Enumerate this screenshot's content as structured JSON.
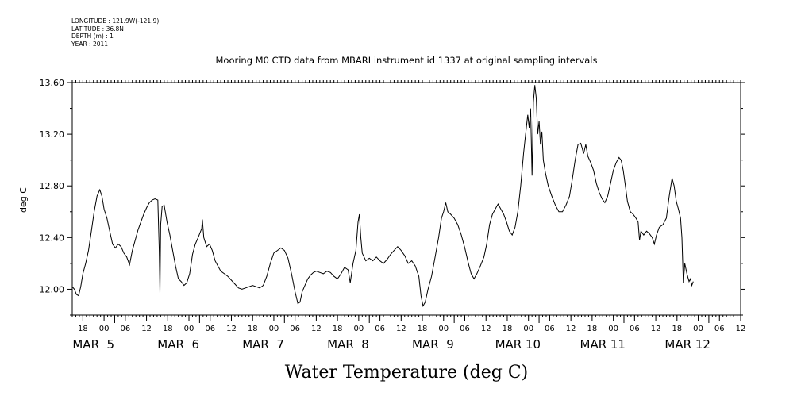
{
  "metadata": [
    "LONGITUDE : 121.9W(-121.9)",
    "LATITUDE : 36.8N",
    "DEPTH (m) : 1",
    "YEAR : 2011"
  ],
  "chart_data": {
    "type": "line",
    "title": "Mooring M0 CTD data from MBARI instrument id 1337 at original sampling intervals",
    "xlabel": "Water Temperature (deg C)",
    "ylabel": "deg C",
    "x_unit": "hours since Mar 4 2011 12:00",
    "xlim": [
      0,
      189
    ],
    "ylim": [
      11.8,
      13.6
    ],
    "yticks": [
      12.0,
      12.4,
      12.8,
      13.2,
      13.6
    ],
    "ytick_labels": [
      "12.00",
      "12.40",
      "12.80",
      "13.20",
      "13.60"
    ],
    "hour_ticks": [
      {
        "x": 3,
        "label": "18"
      },
      {
        "x": 9,
        "label": "00"
      },
      {
        "x": 15,
        "label": "06"
      },
      {
        "x": 21,
        "label": "12"
      },
      {
        "x": 27,
        "label": "18"
      },
      {
        "x": 33,
        "label": "00"
      },
      {
        "x": 39,
        "label": "06"
      },
      {
        "x": 45,
        "label": "12"
      },
      {
        "x": 51,
        "label": "18"
      },
      {
        "x": 57,
        "label": "00"
      },
      {
        "x": 63,
        "label": "06"
      },
      {
        "x": 69,
        "label": "12"
      },
      {
        "x": 75,
        "label": "18"
      },
      {
        "x": 81,
        "label": "00"
      },
      {
        "x": 87,
        "label": "06"
      },
      {
        "x": 93,
        "label": "12"
      },
      {
        "x": 99,
        "label": "18"
      },
      {
        "x": 105,
        "label": "00"
      },
      {
        "x": 111,
        "label": "06"
      },
      {
        "x": 117,
        "label": "12"
      },
      {
        "x": 123,
        "label": "18"
      },
      {
        "x": 129,
        "label": "00"
      },
      {
        "x": 135,
        "label": "06"
      },
      {
        "x": 141,
        "label": "12"
      },
      {
        "x": 147,
        "label": "18"
      },
      {
        "x": 153,
        "label": "00"
      },
      {
        "x": 159,
        "label": "06"
      },
      {
        "x": 165,
        "label": "12"
      },
      {
        "x": 171,
        "label": "18"
      },
      {
        "x": 177,
        "label": "00"
      },
      {
        "x": 183,
        "label": "06"
      },
      {
        "x": 189,
        "label": "12"
      }
    ],
    "day_labels": [
      {
        "x": 6,
        "label": "MAR  5"
      },
      {
        "x": 30,
        "label": "MAR  6"
      },
      {
        "x": 54,
        "label": "MAR  7"
      },
      {
        "x": 78,
        "label": "MAR  8"
      },
      {
        "x": 102,
        "label": "MAR  9"
      },
      {
        "x": 126,
        "label": "MAR 10"
      },
      {
        "x": 150,
        "label": "MAR 11"
      },
      {
        "x": 174,
        "label": "MAR 12"
      }
    ],
    "series": [
      {
        "points": [
          [
            0,
            12.02
          ],
          [
            0.6,
            12.0
          ],
          [
            1.2,
            11.96
          ],
          [
            1.8,
            11.95
          ],
          [
            2.4,
            12.02
          ],
          [
            3,
            12.12
          ],
          [
            3.8,
            12.2
          ],
          [
            4.6,
            12.3
          ],
          [
            5.4,
            12.45
          ],
          [
            6.2,
            12.6
          ],
          [
            7,
            12.72
          ],
          [
            7.8,
            12.77
          ],
          [
            8.4,
            12.72
          ],
          [
            9,
            12.62
          ],
          [
            9.8,
            12.55
          ],
          [
            10.6,
            12.45
          ],
          [
            11.4,
            12.35
          ],
          [
            12.2,
            12.32
          ],
          [
            13,
            12.35
          ],
          [
            13.8,
            12.33
          ],
          [
            14.6,
            12.28
          ],
          [
            15.4,
            12.25
          ],
          [
            16.2,
            12.19
          ],
          [
            17,
            12.3
          ],
          [
            17.8,
            12.38
          ],
          [
            18.6,
            12.46
          ],
          [
            19.4,
            12.52
          ],
          [
            20.2,
            12.58
          ],
          [
            21,
            12.63
          ],
          [
            21.8,
            12.67
          ],
          [
            22.6,
            12.69
          ],
          [
            23.4,
            12.7
          ],
          [
            24.2,
            12.69
          ],
          [
            24.6,
            12.3
          ],
          [
            24.8,
            11.97
          ],
          [
            25,
            12.5
          ],
          [
            25.4,
            12.64
          ],
          [
            26,
            12.65
          ],
          [
            26.8,
            12.52
          ],
          [
            27.6,
            12.42
          ],
          [
            28.4,
            12.3
          ],
          [
            29.2,
            12.18
          ],
          [
            30,
            12.08
          ],
          [
            30.8,
            12.06
          ],
          [
            31.6,
            12.03
          ],
          [
            32.4,
            12.05
          ],
          [
            33.2,
            12.12
          ],
          [
            34,
            12.27
          ],
          [
            34.8,
            12.35
          ],
          [
            35.6,
            12.4
          ],
          [
            36.6,
            12.47
          ],
          [
            36.8,
            12.54
          ],
          [
            37.2,
            12.4
          ],
          [
            38,
            12.33
          ],
          [
            38.8,
            12.35
          ],
          [
            39.6,
            12.3
          ],
          [
            40.4,
            12.22
          ],
          [
            41.2,
            12.18
          ],
          [
            42,
            12.14
          ],
          [
            43,
            12.12
          ],
          [
            44,
            12.1
          ],
          [
            45,
            12.07
          ],
          [
            46,
            12.04
          ],
          [
            47,
            12.01
          ],
          [
            48,
            12.0
          ],
          [
            49,
            12.01
          ],
          [
            50,
            12.02
          ],
          [
            51,
            12.03
          ],
          [
            52,
            12.02
          ],
          [
            53,
            12.01
          ],
          [
            54,
            12.03
          ],
          [
            55,
            12.1
          ],
          [
            56,
            12.2
          ],
          [
            57,
            12.28
          ],
          [
            58,
            12.3
          ],
          [
            59,
            12.32
          ],
          [
            60,
            12.3
          ],
          [
            61,
            12.24
          ],
          [
            62,
            12.12
          ],
          [
            63,
            11.98
          ],
          [
            63.8,
            11.89
          ],
          [
            64.4,
            11.9
          ],
          [
            65,
            11.98
          ],
          [
            65.8,
            12.03
          ],
          [
            66.6,
            12.08
          ],
          [
            67.4,
            12.11
          ],
          [
            68.2,
            12.13
          ],
          [
            69,
            12.14
          ],
          [
            70,
            12.13
          ],
          [
            71,
            12.12
          ],
          [
            72,
            12.14
          ],
          [
            73,
            12.13
          ],
          [
            74,
            12.1
          ],
          [
            75,
            12.08
          ],
          [
            76,
            12.12
          ],
          [
            77,
            12.17
          ],
          [
            78,
            12.15
          ],
          [
            78.6,
            12.05
          ],
          [
            79.4,
            12.2
          ],
          [
            80.2,
            12.3
          ],
          [
            80.8,
            12.52
          ],
          [
            81.2,
            12.58
          ],
          [
            81.6,
            12.4
          ],
          [
            82,
            12.28
          ],
          [
            83,
            12.22
          ],
          [
            84,
            12.24
          ],
          [
            85,
            12.22
          ],
          [
            86,
            12.25
          ],
          [
            87,
            12.22
          ],
          [
            88,
            12.2
          ],
          [
            89,
            12.23
          ],
          [
            90,
            12.27
          ],
          [
            91,
            12.3
          ],
          [
            92,
            12.33
          ],
          [
            93,
            12.3
          ],
          [
            94,
            12.26
          ],
          [
            95,
            12.2
          ],
          [
            96,
            12.22
          ],
          [
            97,
            12.18
          ],
          [
            98,
            12.1
          ],
          [
            98.6,
            11.95
          ],
          [
            99.2,
            11.87
          ],
          [
            99.8,
            11.9
          ],
          [
            100.6,
            12.0
          ],
          [
            101.6,
            12.1
          ],
          [
            102.6,
            12.25
          ],
          [
            103.6,
            12.4
          ],
          [
            104.4,
            12.55
          ],
          [
            105,
            12.6
          ],
          [
            105.6,
            12.67
          ],
          [
            106.2,
            12.6
          ],
          [
            107,
            12.58
          ],
          [
            108,
            12.55
          ],
          [
            109,
            12.5
          ],
          [
            110,
            12.42
          ],
          [
            111,
            12.32
          ],
          [
            112,
            12.2
          ],
          [
            112.8,
            12.12
          ],
          [
            113.6,
            12.08
          ],
          [
            114.4,
            12.12
          ],
          [
            115.4,
            12.18
          ],
          [
            116.4,
            12.25
          ],
          [
            117.2,
            12.35
          ],
          [
            118,
            12.5
          ],
          [
            118.8,
            12.58
          ],
          [
            119.6,
            12.62
          ],
          [
            120.4,
            12.66
          ],
          [
            121.2,
            12.62
          ],
          [
            122,
            12.58
          ],
          [
            122.8,
            12.52
          ],
          [
            123.6,
            12.45
          ],
          [
            124.4,
            12.42
          ],
          [
            125.2,
            12.48
          ],
          [
            126,
            12.6
          ],
          [
            126.8,
            12.8
          ],
          [
            127.6,
            13.05
          ],
          [
            128.2,
            13.2
          ],
          [
            128.8,
            13.35
          ],
          [
            129.2,
            13.25
          ],
          [
            129.6,
            13.4
          ],
          [
            130,
            12.88
          ],
          [
            130.4,
            13.45
          ],
          [
            130.8,
            13.58
          ],
          [
            131.2,
            13.48
          ],
          [
            131.6,
            13.2
          ],
          [
            132,
            13.3
          ],
          [
            132.4,
            13.12
          ],
          [
            132.8,
            13.22
          ],
          [
            133.2,
            13.0
          ],
          [
            133.8,
            12.9
          ],
          [
            134.6,
            12.8
          ],
          [
            135.6,
            12.72
          ],
          [
            136.6,
            12.65
          ],
          [
            137.6,
            12.6
          ],
          [
            138.6,
            12.6
          ],
          [
            139.6,
            12.65
          ],
          [
            140.6,
            12.72
          ],
          [
            141.4,
            12.85
          ],
          [
            142.2,
            13.0
          ],
          [
            143,
            13.12
          ],
          [
            143.8,
            13.13
          ],
          [
            144.6,
            13.05
          ],
          [
            145.2,
            13.12
          ],
          [
            145.8,
            13.03
          ],
          [
            146.6,
            12.98
          ],
          [
            147.4,
            12.92
          ],
          [
            148.2,
            12.82
          ],
          [
            149,
            12.75
          ],
          [
            149.8,
            12.7
          ],
          [
            150.6,
            12.67
          ],
          [
            151.4,
            12.72
          ],
          [
            152.2,
            12.82
          ],
          [
            153,
            12.92
          ],
          [
            153.8,
            12.98
          ],
          [
            154.6,
            13.02
          ],
          [
            155.2,
            13.0
          ],
          [
            155.8,
            12.92
          ],
          [
            156.4,
            12.8
          ],
          [
            157,
            12.68
          ],
          [
            157.8,
            12.6
          ],
          [
            158.6,
            12.58
          ],
          [
            159.4,
            12.55
          ],
          [
            160,
            12.52
          ],
          [
            160.4,
            12.38
          ],
          [
            160.8,
            12.45
          ],
          [
            161.6,
            12.42
          ],
          [
            162.4,
            12.45
          ],
          [
            163.2,
            12.43
          ],
          [
            164,
            12.4
          ],
          [
            164.6,
            12.35
          ],
          [
            165.2,
            12.42
          ],
          [
            166,
            12.48
          ],
          [
            167,
            12.5
          ],
          [
            168,
            12.55
          ],
          [
            168.8,
            12.72
          ],
          [
            169.6,
            12.86
          ],
          [
            170.2,
            12.8
          ],
          [
            170.8,
            12.68
          ],
          [
            171.4,
            12.62
          ],
          [
            172,
            12.55
          ],
          [
            172.4,
            12.4
          ],
          [
            172.8,
            12.05
          ],
          [
            173.2,
            12.2
          ],
          [
            173.8,
            12.12
          ],
          [
            174.4,
            12.06
          ],
          [
            174.8,
            12.08
          ],
          [
            175.2,
            12.03
          ],
          [
            175.6,
            12.06
          ]
        ]
      }
    ]
  }
}
